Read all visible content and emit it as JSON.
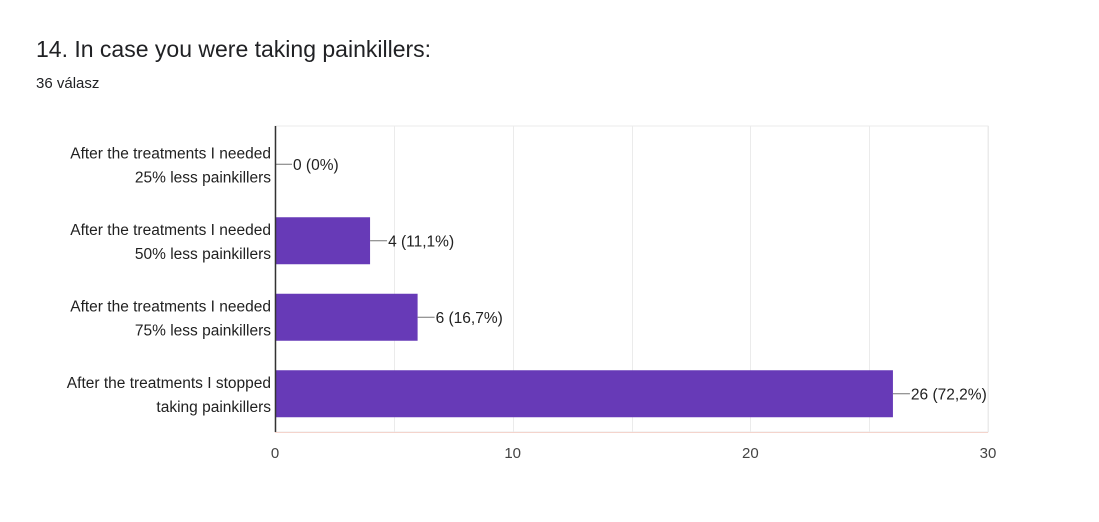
{
  "page": {
    "title": "14. In case you were taking painkillers:",
    "subtitle": "36 válasz"
  },
  "chart_data": {
    "type": "bar",
    "orientation": "horizontal",
    "categories": [
      [
        "After the treatments I needed",
        "25% less painkillers"
      ],
      [
        "After the treatments I needed",
        "50% less painkillers"
      ],
      [
        "After the treatments I needed",
        "75% less painkillers"
      ],
      [
        "After the treatments I stopped",
        "taking painkillers"
      ]
    ],
    "values": [
      0,
      4,
      6,
      26
    ],
    "data_labels": [
      "0 (0%)",
      "4 (11,1%)",
      "6 (16,7%)",
      "26 (72,2%)"
    ],
    "xlim": [
      0,
      30
    ],
    "xticks": [
      0,
      10,
      20,
      30
    ],
    "grid": true,
    "colors": {
      "bar": "#673ab7",
      "grid": "#ebebeb",
      "axis": "#333333",
      "leader": "#757575"
    }
  }
}
